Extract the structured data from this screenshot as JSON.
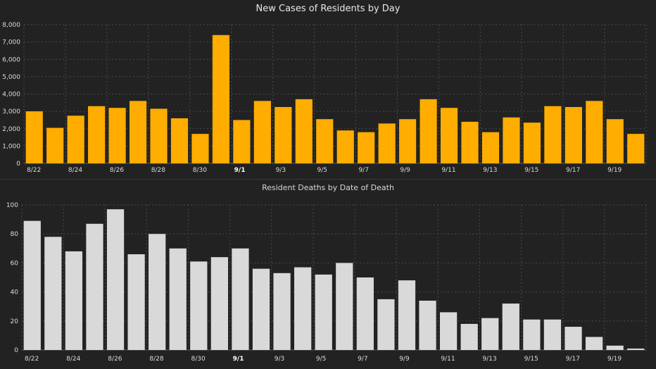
{
  "chart_data": [
    {
      "type": "bar",
      "title": "New Cases of Residents by Day",
      "xlabel": "",
      "ylabel": "",
      "ylim": [
        0,
        8000
      ],
      "yticks": [
        "0",
        "1,000",
        "2,000",
        "3,000",
        "4,000",
        "5,000",
        "6,000",
        "7,000",
        "8,000"
      ],
      "categories": [
        "8/22",
        "8/23",
        "8/24",
        "8/25",
        "8/26",
        "8/27",
        "8/28",
        "8/29",
        "8/30",
        "8/31",
        "9/1",
        "9/2",
        "9/3",
        "9/4",
        "9/5",
        "9/6",
        "9/7",
        "9/8",
        "9/9",
        "9/10",
        "9/11",
        "9/12",
        "9/13",
        "9/14",
        "9/15",
        "9/16",
        "9/17",
        "9/18",
        "9/19",
        "9/20"
      ],
      "xtick_labels": [
        "8/22",
        "8/24",
        "8/26",
        "8/28",
        "8/30",
        "9/1",
        "9/3",
        "9/5",
        "9/7",
        "9/9",
        "9/11",
        "9/13",
        "9/15",
        "9/17",
        "9/19"
      ],
      "bold_tick": "9/1",
      "values": [
        3000,
        2050,
        2750,
        3300,
        3200,
        3600,
        3150,
        2600,
        1700,
        7400,
        2500,
        3600,
        3250,
        3700,
        2550,
        1900,
        1800,
        2300,
        2550,
        3700,
        3200,
        2400,
        1800,
        2650,
        2350,
        3300,
        3250,
        3600,
        2550,
        1700
      ],
      "color": "#ffad00",
      "grid": true
    },
    {
      "type": "bar",
      "title": "Resident Deaths by Date of Death",
      "xlabel": "",
      "ylabel": "",
      "ylim": [
        0,
        100
      ],
      "yticks": [
        "0",
        "20",
        "40",
        "60",
        "80",
        "100"
      ],
      "categories": [
        "8/22",
        "8/23",
        "8/24",
        "8/25",
        "8/26",
        "8/27",
        "8/28",
        "8/29",
        "8/30",
        "8/31",
        "9/1",
        "9/2",
        "9/3",
        "9/4",
        "9/5",
        "9/6",
        "9/7",
        "9/8",
        "9/9",
        "9/10",
        "9/11",
        "9/12",
        "9/13",
        "9/14",
        "9/15",
        "9/16",
        "9/17",
        "9/18",
        "9/19",
        "9/20"
      ],
      "xtick_labels": [
        "8/22",
        "8/24",
        "8/26",
        "8/28",
        "8/30",
        "9/1",
        "9/3",
        "9/5",
        "9/7",
        "9/9",
        "9/11",
        "9/13",
        "9/15",
        "9/17",
        "9/19"
      ],
      "bold_tick": "9/1",
      "values": [
        89,
        78,
        68,
        87,
        97,
        66,
        80,
        70,
        61,
        64,
        70,
        56,
        53,
        57,
        52,
        60,
        50,
        35,
        48,
        34,
        26,
        18,
        22,
        32,
        21,
        21,
        16,
        9,
        3,
        1
      ],
      "color": "#d9d9d9",
      "grid": true
    }
  ]
}
